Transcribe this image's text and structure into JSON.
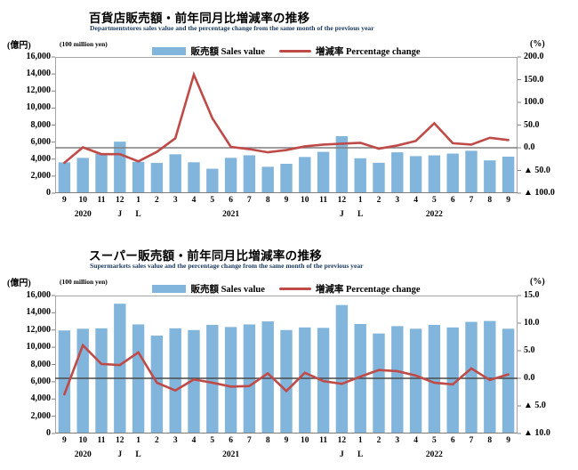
{
  "colors": {
    "bar": "#82B5DC",
    "line": "#BE4B48",
    "plot_border": "#A6A6A6",
    "axis_bottom": "#7F7F7F",
    "tick": "#808080",
    "subtitle": "#17375E",
    "zero_line_top": "#7F7F7F",
    "zero_line_bottom": "#4A4A4A"
  },
  "chart_data": [
    {
      "type": "bar+line",
      "title": "百貨店販売額・前年同月比増減率の推移",
      "subtitle": "Departmentstores sales value and the percentage change from the same month of the previous year",
      "left_unit_jp": "(億円)",
      "left_unit_en": "(100 million yen)",
      "right_unit": "(%)",
      "legend": [
        "販売額 Sales value",
        "増減率 Percentage change"
      ],
      "legend_position": "top",
      "grid": false,
      "categories": [
        "9",
        "10",
        "11",
        "12",
        "1",
        "2",
        "3",
        "4",
        "5",
        "6",
        "7",
        "8",
        "9",
        "10",
        "11",
        "12",
        "1",
        "2",
        "3",
        "4",
        "5",
        "6",
        "7",
        "8",
        "9"
      ],
      "year_row": [
        {
          "index": 1,
          "label": "2020"
        },
        {
          "index": 3,
          "label": "J"
        },
        {
          "index": 4,
          "label": "L"
        },
        {
          "index": 9,
          "label": "2021"
        },
        {
          "index": 15,
          "label": "J"
        },
        {
          "index": 16,
          "label": "L"
        },
        {
          "index": 20,
          "label": "2022"
        }
      ],
      "left_axis": {
        "min": 0,
        "max": 16000,
        "step": 2000,
        "tick_labels": [
          "0",
          "2,000",
          "4,000",
          "6,000",
          "8,000",
          "10,000",
          "12,000",
          "14,000",
          "16,000"
        ]
      },
      "right_axis": {
        "min": -100,
        "max": 200,
        "step": 50,
        "tick_labels": [
          "▲ 100.0",
          "▲ 50.0",
          "0.0",
          "50.0",
          "100.0",
          "150.0",
          "200.0"
        ]
      },
      "series": [
        {
          "name": "販売額 Sales value",
          "type": "bar",
          "axis": "left",
          "values": [
            3620,
            4150,
            4640,
            6050,
            3680,
            3550,
            4570,
            3630,
            2870,
            4150,
            4450,
            3100,
            3450,
            4250,
            4850,
            6690,
            4100,
            3570,
            4800,
            4350,
            4440,
            4650,
            4980,
            3850,
            4290
          ]
        },
        {
          "name": "増減率 Percentage change",
          "type": "line",
          "axis": "right",
          "values": [
            -33,
            1,
            -14,
            -14,
            -30,
            -9,
            21,
            161,
            65,
            2,
            -3,
            -10,
            -5,
            3,
            7,
            9,
            11,
            -2,
            5,
            15,
            54,
            10,
            7,
            22,
            17
          ]
        }
      ]
    },
    {
      "type": "bar+line",
      "title": "スーパー販売額・前年同月比増減率の推移",
      "subtitle": "Supermarkets sales value and the percentage change from the same month of the previous year",
      "left_unit_jp": "(億円)",
      "left_unit_en": "(100 million yen)",
      "right_unit": "(%)",
      "legend": [
        "販売額 Sales value",
        "増減率 Percentage change"
      ],
      "legend_position": "top",
      "grid": false,
      "categories": [
        "9",
        "10",
        "11",
        "12",
        "1",
        "2",
        "3",
        "4",
        "5",
        "6",
        "7",
        "8",
        "9",
        "10",
        "11",
        "12",
        "1",
        "2",
        "3",
        "4",
        "5",
        "6",
        "7",
        "8",
        "9"
      ],
      "year_row": [
        {
          "index": 1,
          "label": "2020"
        },
        {
          "index": 3,
          "label": "J"
        },
        {
          "index": 4,
          "label": "L"
        },
        {
          "index": 9,
          "label": "2021"
        },
        {
          "index": 15,
          "label": "J"
        },
        {
          "index": 16,
          "label": "L"
        },
        {
          "index": 20,
          "label": "2022"
        }
      ],
      "left_axis": {
        "min": 0,
        "max": 16000,
        "step": 2000,
        "tick_labels": [
          "0",
          "2,000",
          "4,000",
          "6,000",
          "8,000",
          "10,000",
          "12,000",
          "14,000",
          "16,000"
        ]
      },
      "right_axis": {
        "min": -10,
        "max": 15,
        "step": 5,
        "tick_labels": [
          "▲ 10.0",
          "▲ 5.0",
          "0.0",
          "5.0",
          "10.0",
          "15.0"
        ]
      },
      "series": [
        {
          "name": "販売額 Sales value",
          "type": "bar",
          "axis": "left",
          "values": [
            11950,
            12150,
            12200,
            15050,
            12650,
            11350,
            12200,
            12000,
            12600,
            12350,
            12650,
            13000,
            12000,
            12300,
            12250,
            14900,
            12700,
            11600,
            12450,
            12150,
            12600,
            12300,
            12950,
            13050,
            12150
          ]
        },
        {
          "name": "増減率 Percentage change",
          "type": "line",
          "axis": "right",
          "values": [
            -2.9,
            6.0,
            2.6,
            2.4,
            4.7,
            -0.8,
            -2.2,
            -0.2,
            -0.8,
            -1.5,
            -1.4,
            0.9,
            -2.3,
            1.0,
            -0.5,
            -1.0,
            0.3,
            1.5,
            1.3,
            0.5,
            -0.8,
            -1.1,
            1.8,
            -0.3,
            0.7
          ]
        }
      ]
    }
  ]
}
